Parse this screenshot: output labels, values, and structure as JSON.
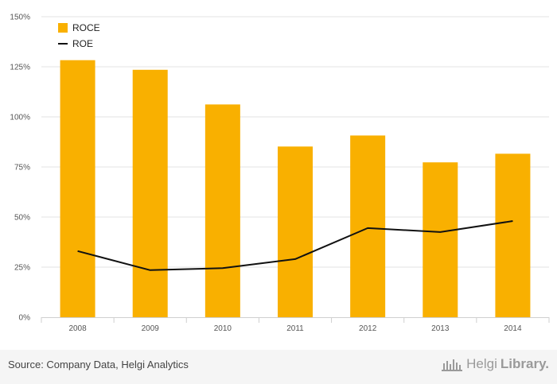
{
  "chart_data": {
    "type": "bar",
    "categories": [
      "2008",
      "2009",
      "2010",
      "2011",
      "2012",
      "2013",
      "2014"
    ],
    "series": [
      {
        "name": "ROCE",
        "type": "bar",
        "color": "#f9b000",
        "values": [
          128.3,
          123.5,
          106.2,
          85.2,
          90.7,
          77.3,
          81.6
        ]
      },
      {
        "name": "ROE",
        "type": "line",
        "color": "#111111",
        "values": [
          33,
          23.5,
          24.5,
          29,
          44.5,
          42.5,
          48
        ]
      }
    ],
    "y_ticks": [
      "0%",
      "25%",
      "50%",
      "75%",
      "100%",
      "125%",
      "150%"
    ],
    "ylim": [
      0,
      150
    ],
    "grid": true,
    "legend_position": "top-left",
    "title": "",
    "xlabel": "",
    "ylabel": ""
  },
  "footer": {
    "source": "Source: Company Data, Helgi Analytics",
    "brand_part1": "Helgi",
    "brand_part2": "Library."
  },
  "colors": {
    "bar": "#f9b000",
    "line": "#111111",
    "grid": "#e3e3e3"
  }
}
